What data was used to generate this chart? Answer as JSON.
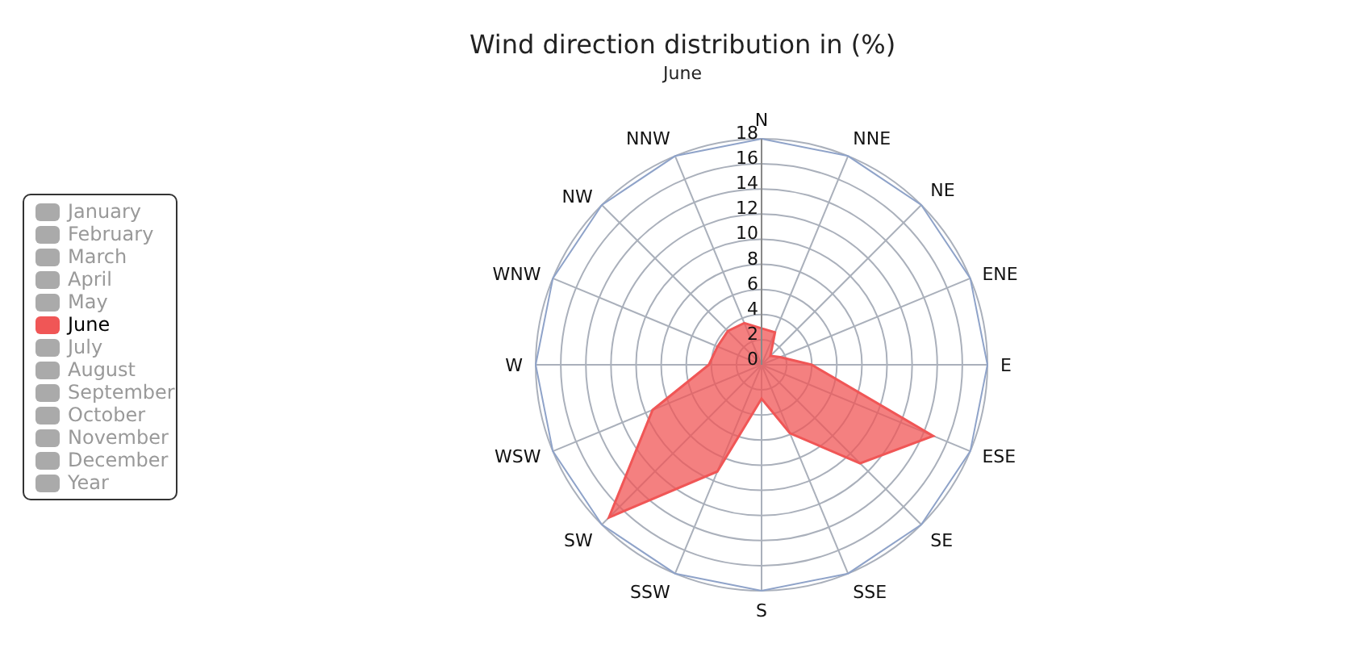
{
  "chart_data": {
    "type": "radar",
    "title": "Wind direction distribution in (%)",
    "subtitle": "June",
    "categories": [
      "N",
      "NNE",
      "NE",
      "ENE",
      "E",
      "ESE",
      "SE",
      "SSE",
      "S",
      "SSW",
      "SW",
      "WSW",
      "W",
      "WNW",
      "NW",
      "NNW"
    ],
    "ylim": [
      0,
      18
    ],
    "yticks": [
      0,
      2,
      4,
      6,
      8,
      10,
      12,
      14,
      16,
      18
    ],
    "grid": true,
    "legend": "left",
    "marker": "none",
    "series": [
      {
        "name": "June",
        "color": "#f05656",
        "values": [
          2.9,
          2.8,
          1.0,
          1.6,
          4.0,
          14.8,
          11.1,
          5.9,
          2.7,
          9.2,
          17.2,
          9.4,
          4.2,
          3.8,
          3.8,
          3.6
        ]
      }
    ],
    "annotations": [
      "January",
      "February",
      "March",
      "April",
      "May",
      "July",
      "August",
      "September",
      "October",
      "November",
      "December",
      "Year"
    ]
  }
}
